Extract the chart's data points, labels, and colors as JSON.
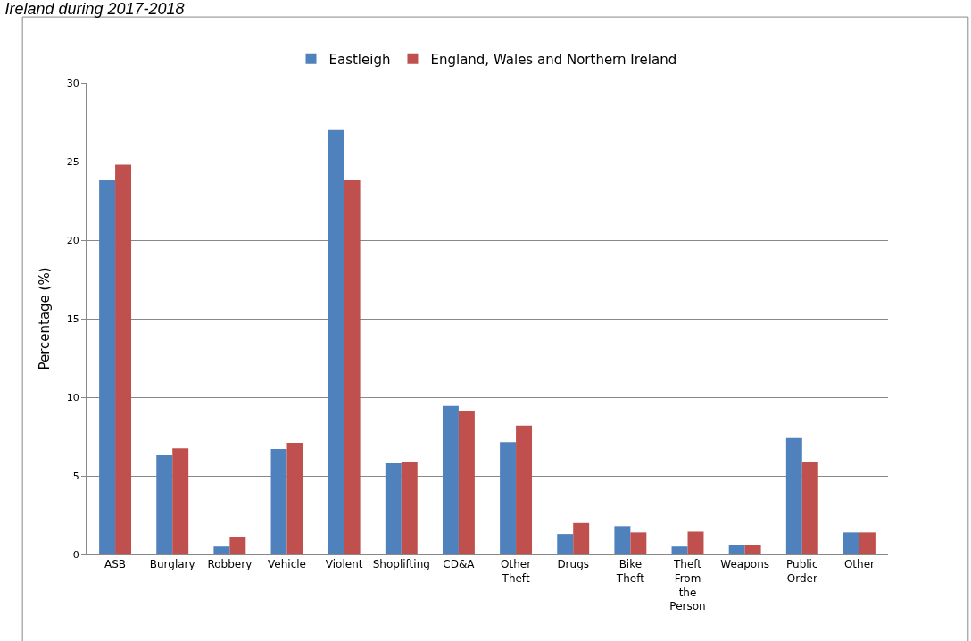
{
  "chart_data": {
    "type": "bar",
    "title": "Ireland during 2017-2018",
    "ylabel": "Percentage (%)",
    "categories": [
      "ASB",
      "Burglary",
      "Robbery",
      "Vehicle",
      "Violent",
      "Shoplifting",
      "CD&A",
      "Other Theft",
      "Drugs",
      "Bike Theft",
      "Theft From the Person",
      "Weapons",
      "Public Order",
      "Other"
    ],
    "series": [
      {
        "name": "Eastleigh",
        "color": "#4f81bd",
        "values": [
          23.8,
          6.3,
          0.5,
          6.7,
          27.0,
          5.8,
          9.45,
          7.15,
          1.3,
          1.8,
          0.5,
          0.6,
          7.4,
          1.4
        ]
      },
      {
        "name": "England, Wales and Northern Ireland",
        "color": "#c0504d",
        "values": [
          24.8,
          6.75,
          1.1,
          7.1,
          23.8,
          5.9,
          9.15,
          8.2,
          2.0,
          1.4,
          1.45,
          0.6,
          5.85,
          1.4
        ]
      }
    ],
    "ylim": [
      0,
      30
    ],
    "yticks": [
      0,
      5,
      10,
      15,
      20,
      25,
      30
    ],
    "grid": "y",
    "legend": "top"
  }
}
